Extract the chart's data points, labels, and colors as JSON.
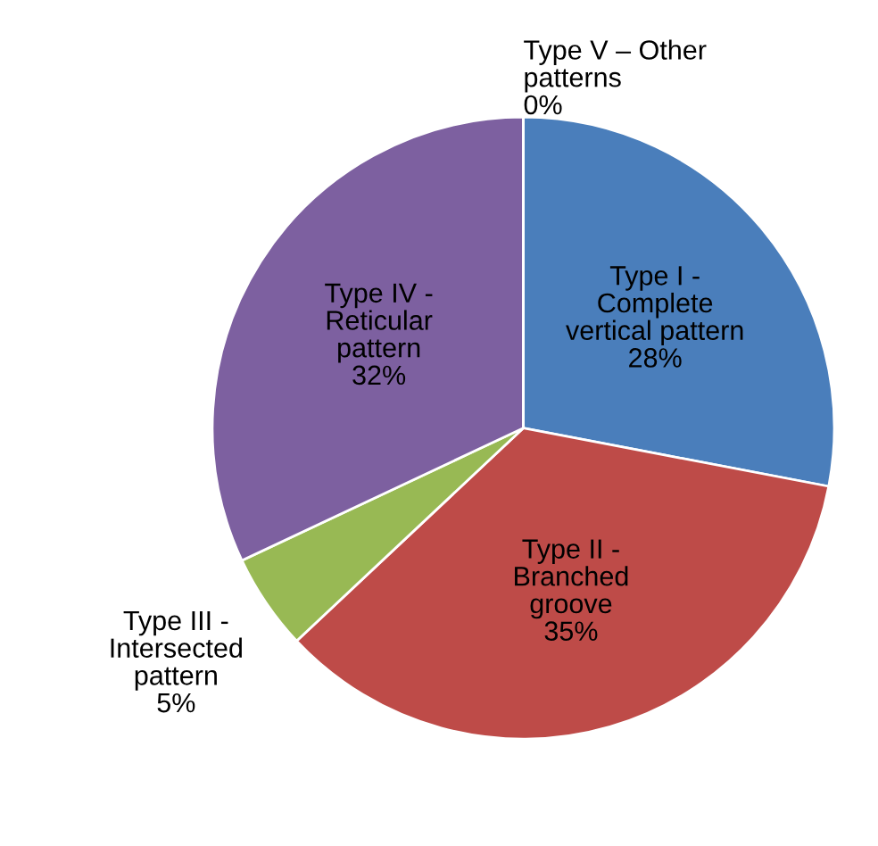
{
  "chart_data": {
    "type": "pie",
    "categories": [
      "Type I -\nComplete\nvertical pattern",
      "Type II -\nBranched\ngroove",
      "Type III -\nIntersected\npattern",
      "Type IV -\nReticular\npattern",
      "Type V – Other\npatterns"
    ],
    "values": [
      28,
      35,
      5,
      32,
      0
    ],
    "value_labels": [
      "28%",
      "35%",
      "5%",
      "32%",
      "0%"
    ],
    "colors": [
      "#4a7ebb",
      "#be4b48",
      "#98b954",
      "#7d60a0",
      "#f79646"
    ],
    "legend": false
  }
}
